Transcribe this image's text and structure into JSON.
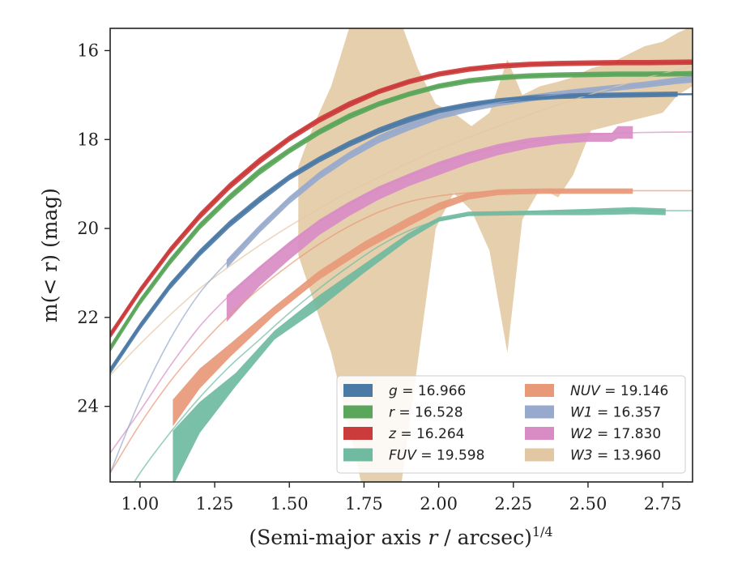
{
  "chart_data": {
    "type": "area",
    "xlabel": "(Semi-major axis r / arcsec)",
    "xlabel_italic": "r",
    "xlabel_superscript": "1/4",
    "ylabel": "m(< r) (mag)",
    "xlim": [
      0.9,
      2.85
    ],
    "ylim": [
      25.7,
      15.5
    ],
    "y_inverted": true,
    "x_ticks": [
      1.0,
      1.25,
      1.5,
      1.75,
      2.0,
      2.25,
      2.5,
      2.75
    ],
    "x_tick_labels": [
      "1.00",
      "1.25",
      "1.50",
      "1.75",
      "2.00",
      "2.25",
      "2.50",
      "2.75"
    ],
    "y_ticks": [
      16,
      18,
      20,
      22,
      24
    ],
    "y_tick_labels": [
      "16",
      "18",
      "20",
      "22",
      "24"
    ],
    "grid": false,
    "legend": {
      "placement": "bottom-right",
      "columns": 2
    },
    "series": [
      {
        "band": "g",
        "value": "16.966",
        "color": "#4c7aa6",
        "model": {
          "x": [
            0.9,
            1.0,
            1.1,
            1.2,
            1.3,
            1.4,
            1.5,
            1.6,
            1.7,
            1.8,
            1.9,
            2.0,
            2.1,
            2.2,
            2.3,
            2.4,
            2.5,
            2.6,
            2.7,
            2.85
          ],
          "y": [
            23.2,
            22.2,
            21.3,
            20.55,
            19.9,
            19.35,
            18.85,
            18.45,
            18.1,
            17.8,
            17.55,
            17.35,
            17.22,
            17.13,
            17.07,
            17.03,
            17.01,
            17.0,
            16.99,
            16.98
          ]
        },
        "band_x": [
          0.9,
          1.0,
          1.1,
          1.2,
          1.3,
          1.4,
          1.5,
          1.6,
          1.7,
          1.8,
          1.9,
          2.0,
          2.1,
          2.2,
          2.3,
          2.4,
          2.5,
          2.6,
          2.7,
          2.8
        ],
        "band_lo": [
          23.28,
          22.28,
          21.38,
          20.63,
          19.98,
          19.43,
          18.92,
          18.52,
          18.17,
          17.87,
          17.62,
          17.41,
          17.28,
          17.19,
          17.13,
          17.09,
          17.07,
          17.06,
          17.05,
          17.04
        ],
        "band_hi": [
          23.12,
          22.12,
          21.22,
          20.47,
          19.82,
          19.27,
          18.78,
          18.38,
          18.03,
          17.73,
          17.48,
          17.29,
          17.16,
          17.07,
          17.01,
          16.97,
          16.95,
          16.94,
          16.93,
          16.92
        ]
      },
      {
        "band": "r",
        "value": "16.528",
        "color": "#5aa65a",
        "model": {
          "x": [
            0.9,
            1.0,
            1.1,
            1.2,
            1.3,
            1.4,
            1.5,
            1.6,
            1.7,
            1.8,
            1.9,
            2.0,
            2.1,
            2.2,
            2.3,
            2.4,
            2.5,
            2.6,
            2.7,
            2.85
          ],
          "y": [
            22.7,
            21.65,
            20.75,
            19.95,
            19.3,
            18.72,
            18.25,
            17.83,
            17.48,
            17.2,
            16.98,
            16.8,
            16.68,
            16.61,
            16.57,
            16.55,
            16.54,
            16.53,
            16.53,
            16.52
          ]
        },
        "band_x": [
          0.9,
          1.0,
          1.1,
          1.2,
          1.3,
          1.4,
          1.5,
          1.6,
          1.7,
          1.8,
          1.9,
          2.0,
          2.1,
          2.2,
          2.3,
          2.4,
          2.5,
          2.6,
          2.7,
          2.85
        ],
        "band_lo": [
          22.78,
          21.73,
          20.83,
          20.03,
          19.38,
          18.8,
          18.32,
          17.9,
          17.55,
          17.26,
          17.04,
          16.86,
          16.74,
          16.67,
          16.63,
          16.61,
          16.6,
          16.59,
          16.59,
          16.58
        ],
        "band_hi": [
          22.62,
          21.57,
          20.67,
          19.87,
          19.22,
          18.64,
          18.18,
          17.76,
          17.41,
          17.14,
          16.92,
          16.74,
          16.62,
          16.55,
          16.51,
          16.49,
          16.48,
          16.47,
          16.47,
          16.46
        ]
      },
      {
        "band": "z",
        "value": "16.264",
        "color": "#cc3b3b",
        "model": {
          "x": [
            0.9,
            1.0,
            1.1,
            1.2,
            1.3,
            1.4,
            1.5,
            1.6,
            1.7,
            1.8,
            1.9,
            2.0,
            2.1,
            2.2,
            2.3,
            2.4,
            2.5,
            2.6,
            2.7,
            2.85
          ],
          "y": [
            22.4,
            21.4,
            20.5,
            19.72,
            19.05,
            18.48,
            17.98,
            17.56,
            17.21,
            16.92,
            16.7,
            16.53,
            16.42,
            16.35,
            16.31,
            16.29,
            16.28,
            16.27,
            16.27,
            16.26
          ]
        },
        "band_x": [
          0.9,
          1.0,
          1.1,
          1.2,
          1.3,
          1.4,
          1.5,
          1.6,
          1.7,
          1.8,
          1.9,
          2.0,
          2.1,
          2.2,
          2.3,
          2.4,
          2.5,
          2.6,
          2.7,
          2.85
        ],
        "band_lo": [
          22.48,
          21.48,
          20.58,
          19.8,
          19.13,
          18.56,
          18.05,
          17.63,
          17.28,
          16.98,
          16.76,
          16.59,
          16.48,
          16.41,
          16.37,
          16.35,
          16.34,
          16.33,
          16.33,
          16.32
        ],
        "band_hi": [
          22.32,
          21.32,
          20.42,
          19.64,
          18.97,
          18.4,
          17.91,
          17.49,
          17.14,
          16.86,
          16.64,
          16.47,
          16.36,
          16.29,
          16.25,
          16.23,
          16.22,
          16.21,
          16.21,
          16.2
        ]
      },
      {
        "band": "FUV",
        "value": "19.598",
        "color": "#6fbaa0",
        "model": {
          "x": [
            0.9,
            1.0,
            1.1,
            1.2,
            1.3,
            1.4,
            1.5,
            1.6,
            1.7,
            1.8,
            1.9,
            2.0,
            2.1,
            2.2,
            2.3,
            2.4,
            2.5,
            2.6,
            2.7,
            2.85
          ],
          "y": [
            26.6,
            25.5,
            24.6,
            23.8,
            23.1,
            22.5,
            21.9,
            21.35,
            20.85,
            20.4,
            20.05,
            19.82,
            19.7,
            19.64,
            19.62,
            19.61,
            19.6,
            19.6,
            19.6,
            19.6
          ]
        },
        "band_x": [
          1.11,
          1.2,
          1.32,
          1.45,
          1.6,
          1.75,
          1.9,
          2.0,
          2.1,
          2.3,
          2.5,
          2.65,
          2.76
        ],
        "band_lo": [
          25.8,
          24.6,
          23.55,
          22.5,
          21.8,
          21.0,
          20.25,
          19.85,
          19.72,
          19.7,
          19.7,
          19.68,
          19.7
        ],
        "band_hi": [
          24.55,
          23.9,
          23.25,
          22.3,
          21.5,
          20.8,
          20.1,
          19.75,
          19.62,
          19.6,
          19.56,
          19.52,
          19.55
        ]
      },
      {
        "band": "NUV",
        "value": "19.146",
        "color": "#e89978",
        "model": {
          "x": [
            0.9,
            1.0,
            1.1,
            1.2,
            1.3,
            1.4,
            1.5,
            1.6,
            1.7,
            1.8,
            1.9,
            2.0,
            2.1,
            2.2,
            2.3,
            2.4,
            2.5,
            2.6,
            2.7,
            2.85
          ],
          "y": [
            25.5,
            24.4,
            23.45,
            22.65,
            21.95,
            21.35,
            20.82,
            20.35,
            19.95,
            19.63,
            19.4,
            19.27,
            19.2,
            19.17,
            19.16,
            19.15,
            19.15,
            19.15,
            19.15,
            19.15
          ]
        },
        "band_x": [
          1.11,
          1.2,
          1.3,
          1.45,
          1.6,
          1.75,
          1.9,
          2.0,
          2.1,
          2.2,
          2.35,
          2.5,
          2.65
        ],
        "band_lo": [
          24.45,
          23.6,
          22.9,
          21.95,
          21.15,
          20.5,
          19.95,
          19.6,
          19.35,
          19.25,
          19.22,
          19.22,
          19.22
        ],
        "band_hi": [
          23.85,
          23.15,
          22.6,
          21.75,
          20.95,
          20.3,
          19.75,
          19.42,
          19.2,
          19.12,
          19.1,
          19.1,
          19.1
        ]
      },
      {
        "band": "W1",
        "value": "16.357",
        "color": "#97a9cc",
        "model": {
          "x": [
            0.9,
            1.0,
            1.1,
            1.2,
            1.3,
            1.4,
            1.5,
            1.6,
            1.7,
            1.8,
            1.9,
            2.0,
            2.1,
            2.2,
            2.3,
            2.4,
            2.5,
            2.6,
            2.7,
            2.85
          ],
          "y": [
            25.5,
            23.85,
            22.5,
            21.45,
            20.7,
            20.0,
            19.35,
            18.8,
            18.35,
            17.98,
            17.7,
            17.47,
            17.3,
            17.17,
            17.07,
            16.98,
            16.9,
            16.83,
            16.76,
            16.65
          ]
        },
        "band_x": [
          1.29,
          1.4,
          1.5,
          1.6,
          1.7,
          1.8,
          1.9,
          2.0,
          2.1,
          2.2,
          2.3,
          2.4,
          2.5,
          2.6,
          2.7,
          2.8,
          2.85
        ],
        "band_lo": [
          20.9,
          20.1,
          19.45,
          18.9,
          18.45,
          18.08,
          17.8,
          17.55,
          17.38,
          17.25,
          17.15,
          17.05,
          16.97,
          16.9,
          16.83,
          16.75,
          16.72
        ],
        "band_hi": [
          20.7,
          19.92,
          19.28,
          18.73,
          18.28,
          17.9,
          17.62,
          17.4,
          17.23,
          17.1,
          17.0,
          16.91,
          16.83,
          16.76,
          16.69,
          16.6,
          16.57
        ]
      },
      {
        "band": "W2",
        "value": "17.830",
        "color": "#d98cc4",
        "model": {
          "x": [
            0.9,
            1.0,
            1.1,
            1.2,
            1.3,
            1.4,
            1.5,
            1.6,
            1.7,
            1.8,
            1.9,
            2.0,
            2.1,
            2.2,
            2.3,
            2.4,
            2.5,
            2.6,
            2.7,
            2.85
          ],
          "y": [
            25.05,
            24.1,
            23.1,
            22.2,
            21.5,
            20.9,
            20.35,
            19.85,
            19.45,
            19.1,
            18.82,
            18.55,
            18.35,
            18.17,
            18.05,
            17.96,
            17.9,
            17.86,
            17.84,
            17.83
          ]
        },
        "band_x": [
          1.29,
          1.4,
          1.5,
          1.6,
          1.7,
          1.8,
          1.9,
          2.0,
          2.1,
          2.2,
          2.3,
          2.4,
          2.5,
          2.58,
          2.6,
          2.65
        ],
        "band_lo": [
          22.1,
          21.3,
          20.7,
          20.15,
          19.72,
          19.35,
          19.05,
          18.8,
          18.55,
          18.35,
          18.2,
          18.1,
          18.05,
          18.05,
          17.98,
          17.98
        ],
        "band_hi": [
          21.5,
          20.85,
          20.3,
          19.8,
          19.4,
          19.05,
          18.77,
          18.5,
          18.28,
          18.1,
          17.97,
          17.9,
          17.85,
          17.85,
          17.7,
          17.7
        ]
      },
      {
        "band": "W3",
        "value": "13.960",
        "color": "#e2c8a2",
        "model": {
          "x": [
            0.9,
            1.0,
            1.1,
            1.2,
            1.3,
            1.4,
            1.5,
            1.6,
            1.7,
            1.8,
            1.9,
            2.0,
            2.1,
            2.2,
            2.3,
            2.4,
            2.5,
            2.6,
            2.7,
            2.85
          ],
          "y": [
            23.3,
            22.6,
            21.95,
            21.35,
            20.85,
            20.38,
            19.95,
            19.55,
            19.18,
            18.85,
            18.52,
            18.22,
            17.95,
            17.7,
            17.45,
            17.22,
            17.0,
            16.8,
            16.6,
            16.35
          ]
        },
        "band_x": [
          1.53,
          1.58,
          1.64,
          1.7,
          1.75,
          1.81,
          1.87,
          1.93,
          1.99,
          2.05,
          2.11,
          2.17,
          2.23,
          2.28,
          2.34,
          2.4,
          2.45,
          2.51,
          2.57,
          2.63,
          2.69,
          2.75,
          2.8,
          2.85
        ],
        "band_lo": [
          20.6,
          21.6,
          22.8,
          24.5,
          26.0,
          26.5,
          26.0,
          23.0,
          20.0,
          19.2,
          19.6,
          20.5,
          22.8,
          19.8,
          19.1,
          19.3,
          18.8,
          17.8,
          17.7,
          17.6,
          17.5,
          17.4,
          17.0,
          16.8
        ],
        "band_hi": [
          18.6,
          17.7,
          16.8,
          15.5,
          15.3,
          15.3,
          15.3,
          16.4,
          17.2,
          17.4,
          17.7,
          17.4,
          16.2,
          17.0,
          16.8,
          16.7,
          16.6,
          16.4,
          16.3,
          16.1,
          15.9,
          15.8,
          15.6,
          15.45
        ]
      }
    ]
  }
}
